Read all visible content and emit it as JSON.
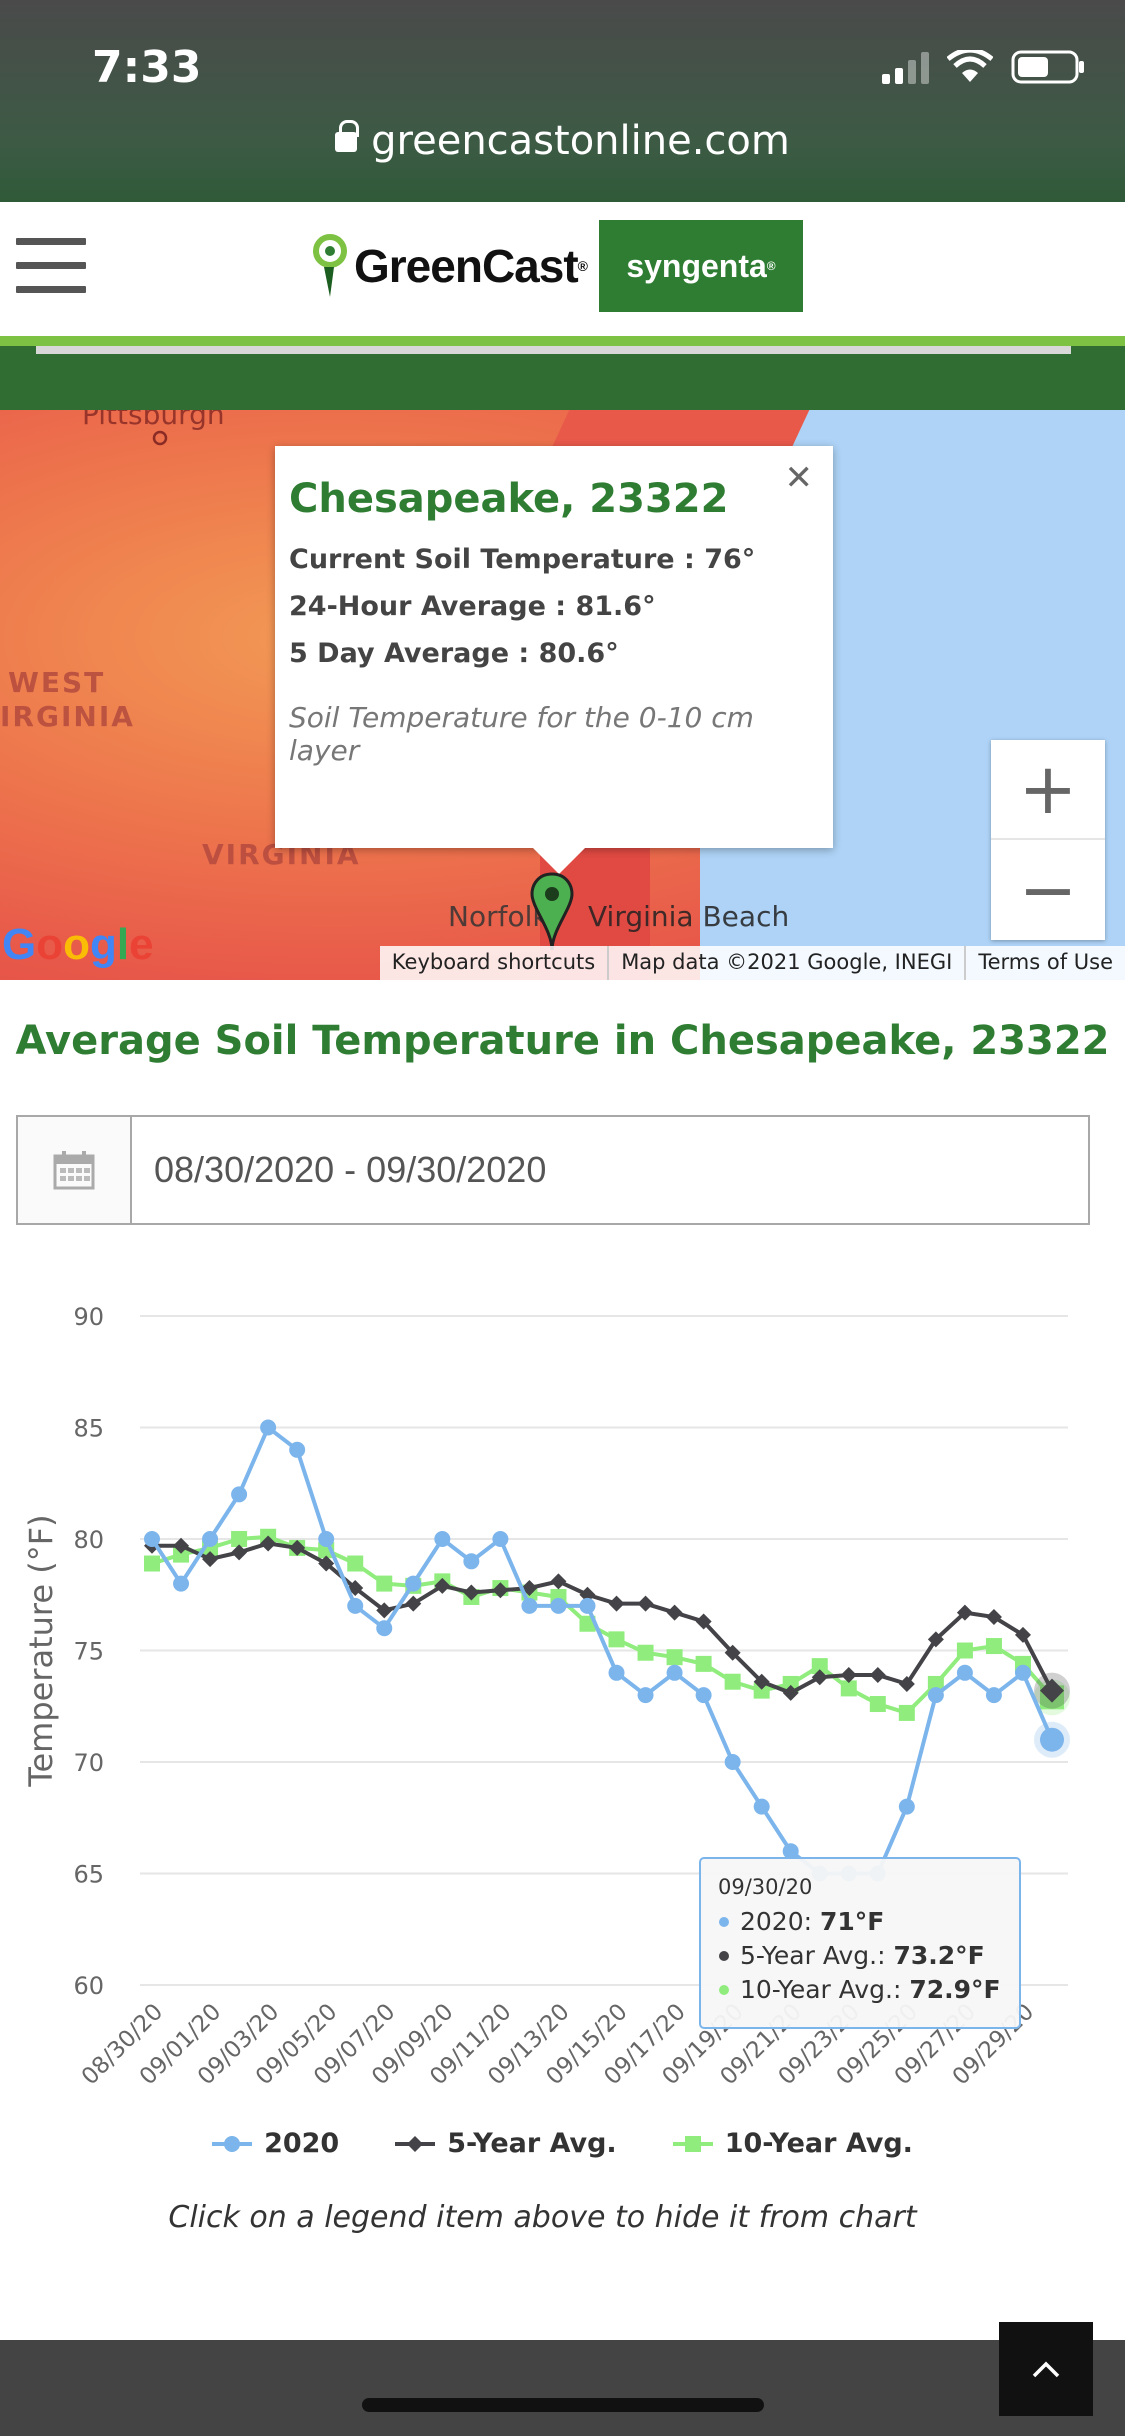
{
  "status": {
    "time": "7:33"
  },
  "browser": {
    "url": "greencastonline.com"
  },
  "header": {
    "brand": "GreenCast",
    "partner": "syngenta"
  },
  "map": {
    "labels": {
      "pittsburgh": "Pittsburgh",
      "west_virginia_1": "WEST",
      "west_virginia_2": "IRGINIA",
      "virginia": "VIRGINIA",
      "norfolk": "Norfolk",
      "virginia_beach": "Virginia Beach"
    },
    "popup": {
      "title": "Chesapeake, 23322",
      "current": "Current Soil Temperature : 76°",
      "avg24": "24-Hour Average : 81.6°",
      "avg5": "5 Day Average : 80.6°",
      "note": "Soil Temperature for the 0-10 cm layer"
    },
    "zoom_in": "+",
    "zoom_out": "−",
    "google": "Google",
    "attribution": {
      "shortcuts": "Keyboard shortcuts",
      "data": "Map data ©2021 Google, INEGI",
      "terms": "Terms of Use"
    }
  },
  "chart_section": {
    "title": "Average Soil Temperature in Chesapeake, 23322",
    "date_range": "08/30/2020 - 09/30/2020",
    "legend_help": "Click on a legend item above to hide it from chart"
  },
  "chart_data": {
    "type": "line",
    "ylabel": "Temperature (°F)",
    "xlabel": "",
    "ylim": [
      60,
      90
    ],
    "yticks": [
      60,
      65,
      70,
      75,
      80,
      85,
      90
    ],
    "xtick_labels": [
      "08/30/20",
      "09/01/20",
      "09/03/20",
      "09/05/20",
      "09/07/20",
      "09/09/20",
      "09/11/20",
      "09/13/20",
      "09/15/20",
      "09/17/20",
      "09/19/20",
      "09/21/20",
      "09/23/20",
      "09/25/20",
      "09/27/20",
      "09/29/20"
    ],
    "x": [
      "08/30/20",
      "08/31/20",
      "09/01/20",
      "09/02/20",
      "09/03/20",
      "09/04/20",
      "09/05/20",
      "09/06/20",
      "09/07/20",
      "09/08/20",
      "09/09/20",
      "09/10/20",
      "09/11/20",
      "09/12/20",
      "09/13/20",
      "09/14/20",
      "09/15/20",
      "09/16/20",
      "09/17/20",
      "09/18/20",
      "09/19/20",
      "09/20/20",
      "09/21/20",
      "09/22/20",
      "09/23/20",
      "09/24/20",
      "09/25/20",
      "09/26/20",
      "09/27/20",
      "09/28/20",
      "09/29/20",
      "09/30/20"
    ],
    "series": [
      {
        "name": "2020",
        "color": "#7cb5ec",
        "marker": "circle",
        "values": [
          80,
          78,
          80,
          82,
          85,
          84,
          80,
          77,
          76,
          78,
          80,
          79,
          80,
          77,
          77,
          77,
          74,
          73,
          74,
          73,
          70,
          68,
          66,
          65,
          65,
          65,
          68,
          73,
          74,
          73,
          74,
          71
        ]
      },
      {
        "name": "5-Year Avg.",
        "color": "#434348",
        "marker": "diamond",
        "values": [
          79.7,
          79.7,
          79.1,
          79.4,
          79.8,
          79.6,
          78.9,
          77.8,
          76.8,
          77.1,
          77.9,
          77.6,
          77.7,
          77.8,
          78.1,
          77.5,
          77.1,
          77.1,
          76.7,
          76.3,
          74.9,
          73.6,
          73.1,
          73.8,
          73.9,
          73.9,
          73.5,
          75.5,
          76.7,
          76.5,
          75.7,
          73.2
        ]
      },
      {
        "name": "10-Year Avg.",
        "color": "#90ed7d",
        "marker": "square",
        "values": [
          78.9,
          79.3,
          79.6,
          80.0,
          80.1,
          79.6,
          79.5,
          78.9,
          78.0,
          77.9,
          78.1,
          77.4,
          77.8,
          77.6,
          77.4,
          76.2,
          75.5,
          74.9,
          74.7,
          74.4,
          73.6,
          73.2,
          73.5,
          74.3,
          73.3,
          72.6,
          72.2,
          73.5,
          75.0,
          75.2,
          74.4,
          72.9
        ]
      }
    ],
    "tooltip": {
      "date": "09/30/20",
      "lines": [
        {
          "series": "2020",
          "value": "71°F",
          "color": "#7cb5ec"
        },
        {
          "series": "5-Year Avg.",
          "value": "73.2°F",
          "color": "#434348"
        },
        {
          "series": "10-Year Avg.",
          "value": "72.9°F",
          "color": "#90ed7d"
        }
      ]
    },
    "grid": true,
    "legend_position": "bottom"
  }
}
